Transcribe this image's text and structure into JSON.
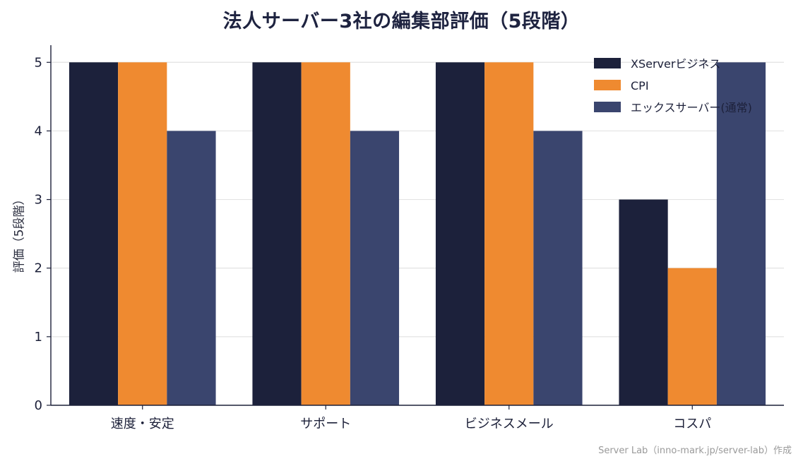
{
  "chart_data": {
    "type": "bar",
    "title": "法人サーバー3社の編集部評価（5段階）",
    "ylabel": "評価（5段階）",
    "xlabel": "",
    "categories": [
      "速度・安定",
      "サポート",
      "ビジネスメール",
      "コスパ"
    ],
    "series": [
      {
        "name": "XServerビジネス",
        "values": [
          5,
          5,
          5,
          3
        ],
        "color": "#1c213b"
      },
      {
        "name": "CPI",
        "values": [
          5,
          5,
          5,
          2
        ],
        "color": "#ef8a30"
      },
      {
        "name": "エックスサーバー(通常)",
        "values": [
          4,
          4,
          4,
          5
        ],
        "color": "#3a456e"
      }
    ],
    "ylim": [
      0,
      5.25
    ],
    "yticks": [
      "0",
      "1",
      "2",
      "3",
      "4",
      "5"
    ],
    "grid": "horizontal",
    "legend": "top-right"
  },
  "credit": "Server Lab（inno-mark.jp/server-lab）作成"
}
